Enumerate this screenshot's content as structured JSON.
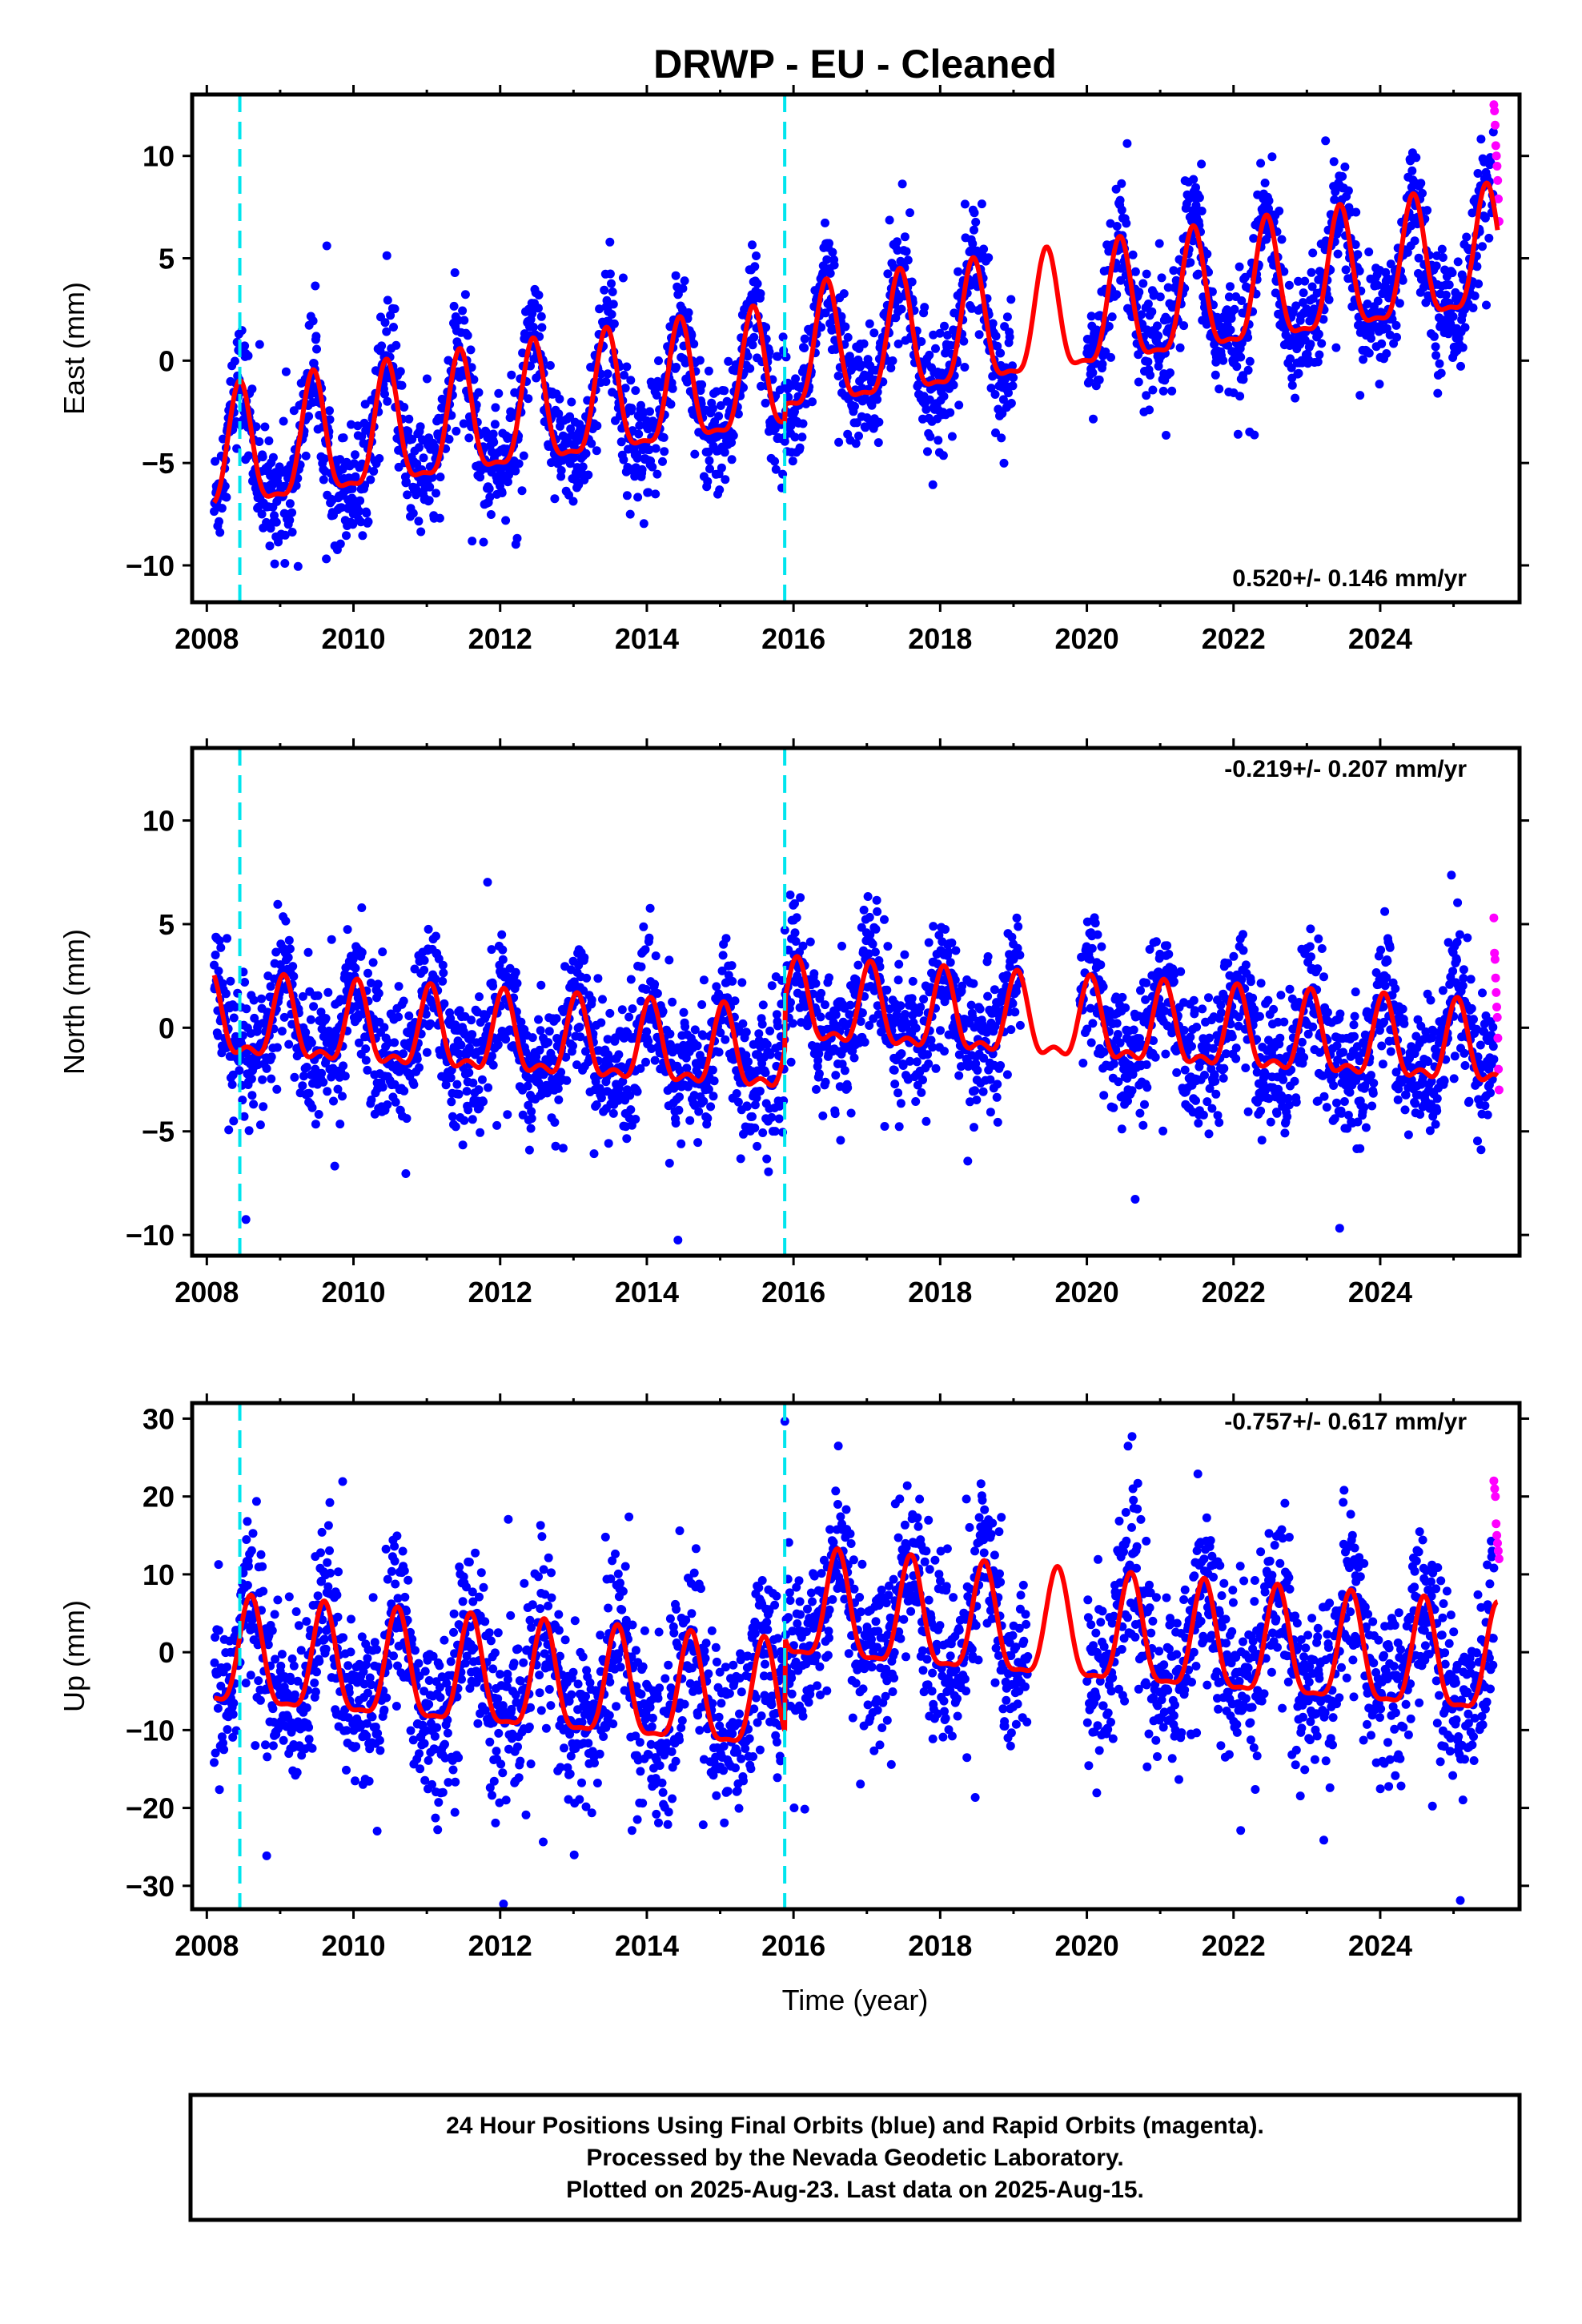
{
  "title": "DRWP  - EU - Cleaned",
  "x_axis_label": "Time (year)",
  "footer": {
    "line1": "24 Hour Positions Using Final Orbits (blue) and Rapid Orbits (magenta).",
    "line2": "Processed by the Nevada Geodetic Laboratory.",
    "line3": "Plotted on 2025-Aug-23. Last data on 2025-Aug-15."
  },
  "colors": {
    "final_orbits": "#0000ff",
    "rapid_orbits": "#ff00ff",
    "model": "#ff0000",
    "equipment_change": "#00e5ee"
  },
  "chart_data": [
    {
      "type": "scatter",
      "component": "east",
      "ylabel": "East (mm)",
      "rate_label": "0.520+/- 0.146 mm/yr",
      "xlim": [
        2007.8,
        2025.9
      ],
      "ylim": [
        -11.8,
        13
      ],
      "x_ticks": [
        2008,
        2010,
        2012,
        2014,
        2016,
        2018,
        2020,
        2022,
        2024
      ],
      "y_ticks": [
        -10,
        -5,
        0,
        5,
        10
      ],
      "equipment_changes": [
        2008.45,
        2015.88
      ],
      "model": {
        "rate": 0.52,
        "offset_at_2008": -5.0,
        "offsets": [
          [
            2015.88,
            0.8
          ]
        ],
        "annual_amplitude": 2.9,
        "annual_peak_phase": 0.45,
        "semiannual_amplitude": 0.9,
        "gap": [
          2019.0,
          2020.0
        ]
      },
      "final_orbits_scatter": 1.4,
      "rapid_orbits": {
        "start": 2025.55,
        "end": 2025.62,
        "values": [
          12.5,
          12.2,
          11.5,
          10.5,
          10.0,
          9.5,
          8.8,
          7.9,
          6.8
        ]
      }
    },
    {
      "type": "scatter",
      "component": "north",
      "ylabel": "North (mm)",
      "rate_label": "-0.219+/- 0.207 mm/yr",
      "xlim": [
        2007.8,
        2025.9
      ],
      "ylim": [
        -11,
        13.5
      ],
      "x_ticks": [
        2008,
        2010,
        2012,
        2014,
        2016,
        2018,
        2020,
        2022,
        2024
      ],
      "y_ticks": [
        -10,
        -5,
        0,
        5,
        10
      ],
      "equipment_changes": [
        2008.45,
        2015.88
      ],
      "model": {
        "rate": -0.219,
        "offset_at_2008": 0.2,
        "offsets": [
          [
            2015.88,
            2.4
          ]
        ],
        "annual_amplitude": 1.8,
        "annual_peak_phase": 0.05,
        "semiannual_amplitude": 0.8,
        "gap": [
          2019.1,
          2019.9
        ]
      },
      "final_orbits_scatter": 1.6,
      "rapid_orbits": {
        "start": 2025.55,
        "end": 2025.62,
        "values": [
          5.3,
          3.6,
          3.3,
          2.4,
          1.7,
          1.0,
          0.5,
          -0.5,
          -2.0,
          -3.0
        ]
      }
    },
    {
      "type": "scatter",
      "component": "up",
      "ylabel": "Up (mm)",
      "rate_label": "-0.757+/- 0.617 mm/yr",
      "xlim": [
        2007.8,
        2025.9
      ],
      "ylim": [
        -33,
        32
      ],
      "x_ticks": [
        2008,
        2010,
        2012,
        2014,
        2016,
        2018,
        2020,
        2022,
        2024
      ],
      "y_ticks": [
        -30,
        -20,
        -10,
        0,
        10,
        20,
        30
      ],
      "equipment_changes": [
        2008.45,
        2015.88
      ],
      "model": {
        "rate": -0.757,
        "offset_at_2008": -1.0,
        "offsets": [
          [
            2015.88,
            12.0
          ]
        ],
        "annual_amplitude": 6.8,
        "annual_peak_phase": 0.6,
        "semiannual_amplitude": 2.0,
        "gap": [
          2019.2,
          2020.0
        ]
      },
      "final_orbits_scatter": 5.5,
      "rapid_orbits": {
        "start": 2025.55,
        "end": 2025.62,
        "values": [
          22.0,
          21.0,
          20.0,
          16.5,
          15.0,
          14.0,
          13.0,
          12.0
        ]
      }
    }
  ]
}
